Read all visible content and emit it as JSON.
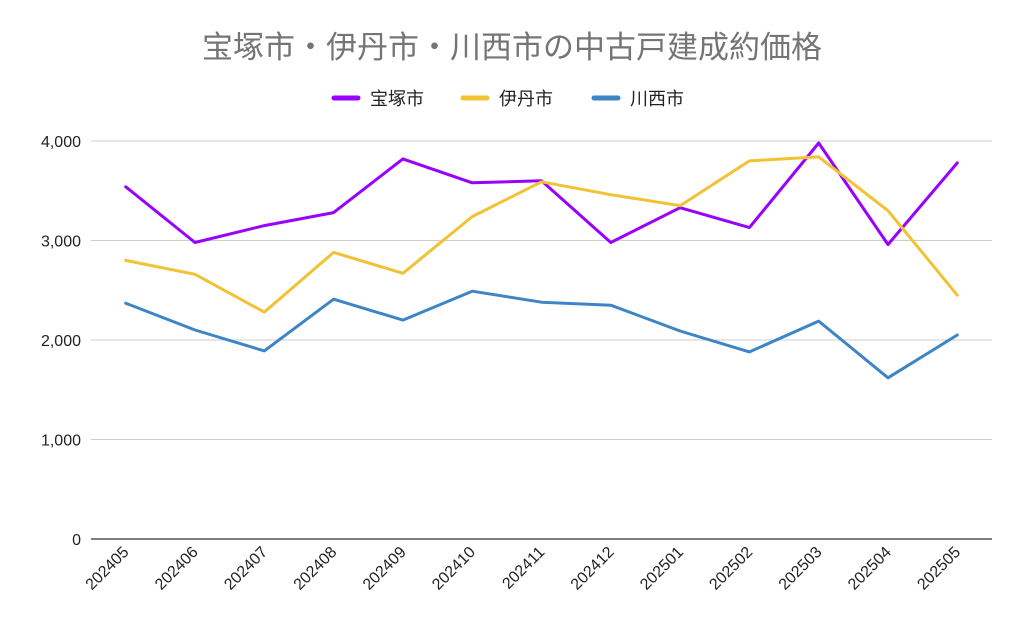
{
  "chart_data": {
    "type": "line",
    "title": "宝塚市・伊丹市・川西市の中古戸建成約価格",
    "xlabel": "",
    "ylabel": "",
    "categories": [
      "202405",
      "202406",
      "202407",
      "202408",
      "202409",
      "202410",
      "202411",
      "202412",
      "202501",
      "202502",
      "202503",
      "202504",
      "202505"
    ],
    "ylim": [
      0,
      4000
    ],
    "yticks": [
      0,
      1000,
      2000,
      3000,
      4000
    ],
    "ytick_labels": [
      "0",
      "1,000",
      "2,000",
      "3,000",
      "4,000"
    ],
    "grid": true,
    "legend_position": "top",
    "series": [
      {
        "name": "宝塚市",
        "color": "#9900ff",
        "values": [
          3540,
          2980,
          3150,
          3280,
          3820,
          3580,
          3600,
          2980,
          3330,
          3130,
          3980,
          2960,
          3780
        ]
      },
      {
        "name": "伊丹市",
        "color": "#f1c232",
        "values": [
          2800,
          2660,
          2280,
          2880,
          2670,
          3240,
          3590,
          3460,
          3350,
          3800,
          3840,
          3300,
          2450
        ]
      },
      {
        "name": "川西市",
        "color": "#3d85c6",
        "values": [
          2370,
          2100,
          1890,
          2410,
          2200,
          2490,
          2380,
          2350,
          2090,
          1880,
          2190,
          1620,
          2050
        ]
      }
    ]
  }
}
